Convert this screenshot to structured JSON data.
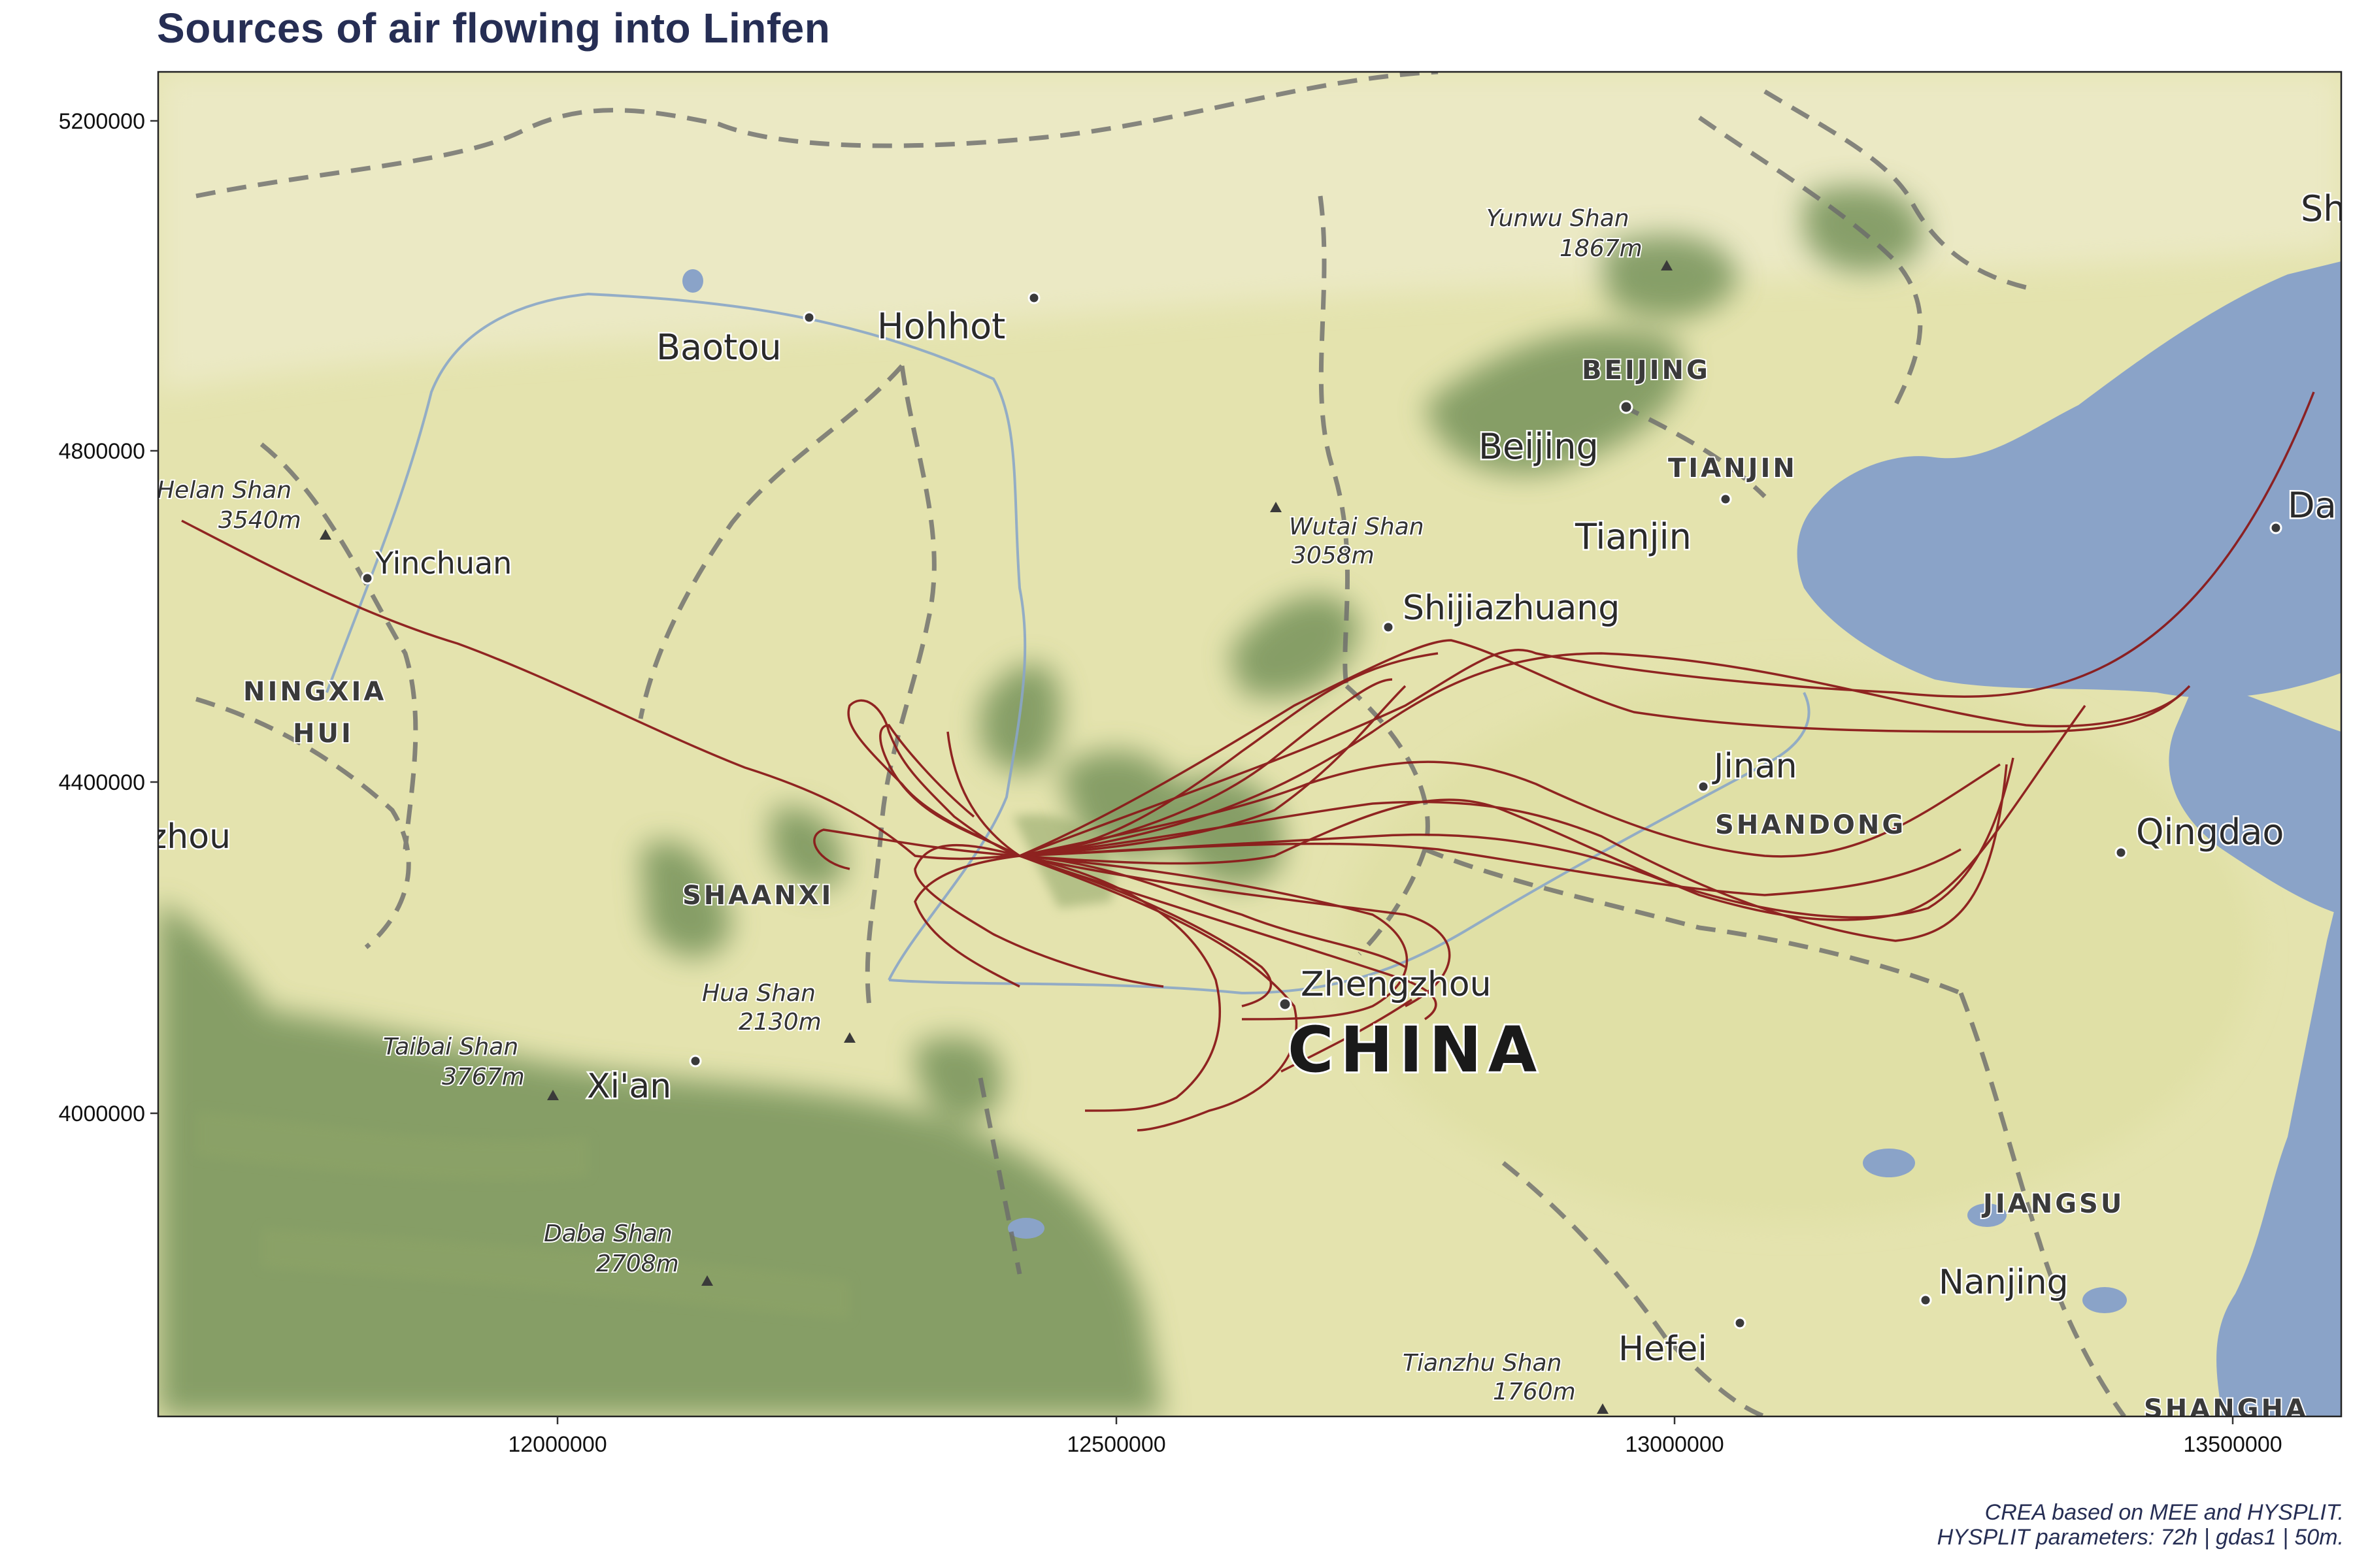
{
  "title": "Sources of air flowing into Linfen",
  "credit": {
    "line1": "CREA based on MEE and HYSPLIT.",
    "line2": "HYSPLIT parameters: 72h | gdas1 | 50m."
  },
  "axes": {
    "x_ticks": [
      "12000000",
      "12500000",
      "13000000",
      "13500000"
    ],
    "y_ticks": [
      "5200000",
      "4800000",
      "4400000",
      "4000000"
    ]
  },
  "labels": {
    "country": "CHINA",
    "cities": {
      "baotou": "Baotou",
      "hohhot": "Hohhot",
      "beijing": "Beijing",
      "tianjin": "Tianjin",
      "yinchuan": "Yinchuan",
      "shijiazhuang": "Shijiazhuang",
      "jinan": "Jinan",
      "qingdao": "Qingdao",
      "zhengzhou": "Zhengzhou",
      "xian": "Xi'an",
      "nanjing": "Nanjing",
      "hefei": "Hefei",
      "dalian_part": "Da",
      "lanzhou_part": "zhou",
      "sh_part": "Sh"
    },
    "regions": {
      "beijing": "BEIJING",
      "tianjin": "TIANJIN",
      "ningxia": "NINGXIA",
      "hui": "HUI",
      "shaanxi": "SHAANXI",
      "shandong": "SHANDONG",
      "jiangsu": "JIANGSU",
      "shanghai": "SHANGHA"
    },
    "peaks": {
      "yunwu_name": "Yunwu Shan",
      "yunwu_elev": "1867m",
      "helan_name": "Helan Shan",
      "helan_elev": "3540m",
      "wutai_name": "Wutai Shan",
      "wutai_elev": "3058m",
      "hua_name": "Hua Shan",
      "hua_elev": "2130m",
      "taibai_name": "Taibai Shan",
      "taibai_elev": "3767m",
      "daba_name": "Daba Shan",
      "daba_elev": "2708m",
      "tianzhu_name": "Tianzhu Shan",
      "tianzhu_elev": "1760m"
    }
  },
  "colors": {
    "trajectory": "#8b1a1a",
    "title": "#262e54",
    "sea": "#8aa3c8",
    "land": "#e3e2ab",
    "mountain": "#6f8a4e"
  }
}
